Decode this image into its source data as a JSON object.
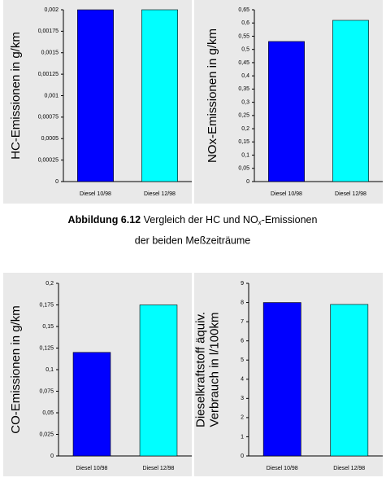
{
  "chart_data": [
    {
      "type": "bar",
      "ylabel": [
        "HC-Emissionen in g/km"
      ],
      "categories": [
        "Diesel 10/98",
        "Diesel 12/98"
      ],
      "values": [
        0.002,
        0.002
      ],
      "colors": [
        "#0000ff",
        "#00ffff"
      ],
      "ylim": [
        0,
        0.002
      ],
      "yticks": [
        0,
        {
          "value": 0.00025,
          "label": "0,00025"
        },
        {
          "value": 0.0005,
          "label": "0,0005"
        },
        {
          "value": 0.00075,
          "label": "0,00075"
        },
        {
          "value": 0.001,
          "label": "0,001"
        },
        {
          "value": 0.00125,
          "label": "0,00125"
        },
        {
          "value": 0.0015,
          "label": "0,0015"
        },
        {
          "value": 0.00175,
          "label": "0,00175"
        },
        {
          "value": 0.002,
          "label": "0,002"
        }
      ]
    },
    {
      "type": "bar",
      "ylabel": [
        "NOx-Emissionen in g/km"
      ],
      "categories": [
        "Diesel 10/98",
        "Diesel 12/98"
      ],
      "values": [
        0.53,
        0.61
      ],
      "colors": [
        "#0000ff",
        "#00ffff"
      ],
      "ylim": [
        0,
        0.65
      ],
      "yticks": [
        0,
        {
          "value": 0.05,
          "label": "0,05"
        },
        {
          "value": 0.1,
          "label": "0,1"
        },
        {
          "value": 0.15,
          "label": "0,15"
        },
        {
          "value": 0.2,
          "label": "0,2"
        },
        {
          "value": 0.25,
          "label": "0,25"
        },
        {
          "value": 0.3,
          "label": "0,3"
        },
        {
          "value": 0.35,
          "label": "0,35"
        },
        {
          "value": 0.4,
          "label": "0,4"
        },
        {
          "value": 0.45,
          "label": "0,45"
        },
        {
          "value": 0.5,
          "label": "0,5"
        },
        {
          "value": 0.55,
          "label": "0,55"
        },
        {
          "value": 0.6,
          "label": "0,6"
        },
        {
          "value": 0.65,
          "label": "0,65"
        }
      ]
    },
    {
      "type": "bar",
      "ylabel": [
        "CO-Emissionen in g/km"
      ],
      "categories": [
        "Diesel 10/98",
        "Diesel 12/98"
      ],
      "values": [
        0.12,
        0.175
      ],
      "colors": [
        "#0000ff",
        "#00ffff"
      ],
      "ylim": [
        0,
        0.2
      ],
      "yticks": [
        0,
        {
          "value": 0.025,
          "label": "0,025"
        },
        {
          "value": 0.05,
          "label": "0,05"
        },
        {
          "value": 0.075,
          "label": "0,075"
        },
        {
          "value": 0.1,
          "label": "0,1"
        },
        {
          "value": 0.125,
          "label": "0,125"
        },
        {
          "value": 0.15,
          "label": "0,15"
        },
        {
          "value": 0.175,
          "label": "0,175"
        },
        {
          "value": 0.2,
          "label": "0,2"
        }
      ]
    },
    {
      "type": "bar",
      "ylabel": [
        "Dieselkraftstoff äquiv.",
        "Verbrauch in l/100km"
      ],
      "categories": [
        "Diesel 10/98",
        "Diesel 12/98"
      ],
      "values": [
        8.0,
        7.9
      ],
      "colors": [
        "#0000ff",
        "#00ffff"
      ],
      "ylim": [
        0,
        9
      ],
      "yticks": [
        0,
        1,
        2,
        3,
        4,
        5,
        6,
        7,
        8,
        9
      ]
    }
  ],
  "caption": {
    "label": "Abbildung 6.12",
    "text_before": "Vergleich der HC und NO",
    "subscript": "x",
    "text_after": "-Emissionen",
    "line2": "der beiden Meßzeiträume"
  }
}
